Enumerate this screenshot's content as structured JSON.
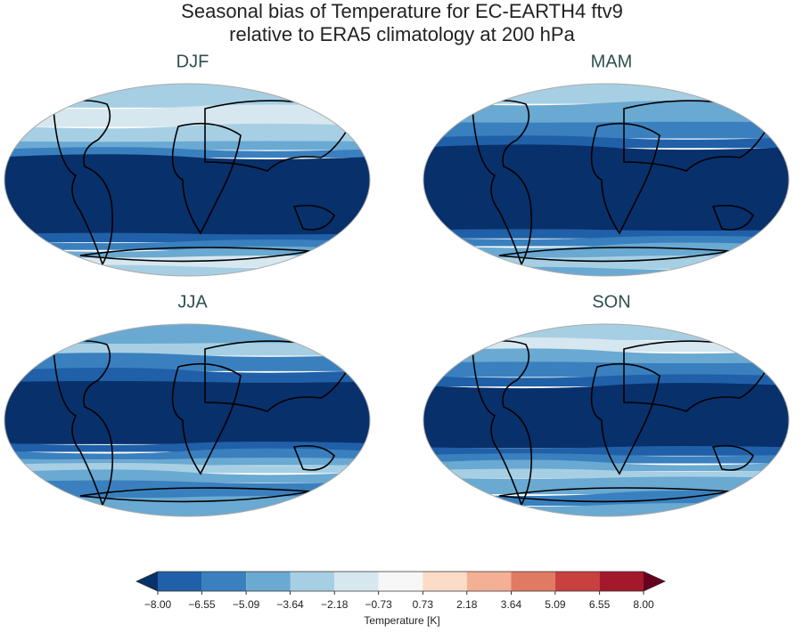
{
  "title": [
    "Seasonal bias of Temperature for EC-EARTH4 ftv9",
    "relative to ERA5 climatology at 200 hPa"
  ],
  "panels": [
    "DJF",
    "MAM",
    "JJA",
    "SON"
  ],
  "colorbar": {
    "label": "Temperature [K]",
    "range": [
      -8,
      8
    ],
    "ticks": [
      {
        "value": -8,
        "label": "−8.00"
      },
      {
        "value": -6.55,
        "label": "−6.55"
      },
      {
        "value": -5.09,
        "label": "−5.09"
      },
      {
        "value": -3.64,
        "label": "−3.64"
      },
      {
        "value": -2.18,
        "label": "−2.18"
      },
      {
        "value": -0.73,
        "label": "−0.73"
      },
      {
        "value": 0.73,
        "label": "0.73"
      },
      {
        "value": 2.18,
        "label": "2.18"
      },
      {
        "value": 3.64,
        "label": "3.64"
      },
      {
        "value": 5.09,
        "label": "5.09"
      },
      {
        "value": 6.55,
        "label": "6.55"
      },
      {
        "value": 8,
        "label": "8.00"
      }
    ],
    "colors": [
      "#2060a8",
      "#3a80be",
      "#6aa9d1",
      "#a7cfe4",
      "#d7e7f0",
      "#f7f7f7",
      "#fbdcc8",
      "#f4b094",
      "#e07a63",
      "#c8413f",
      "#a4182b"
    ],
    "under_color": "#08306b",
    "over_color": "#67001f"
  }
}
